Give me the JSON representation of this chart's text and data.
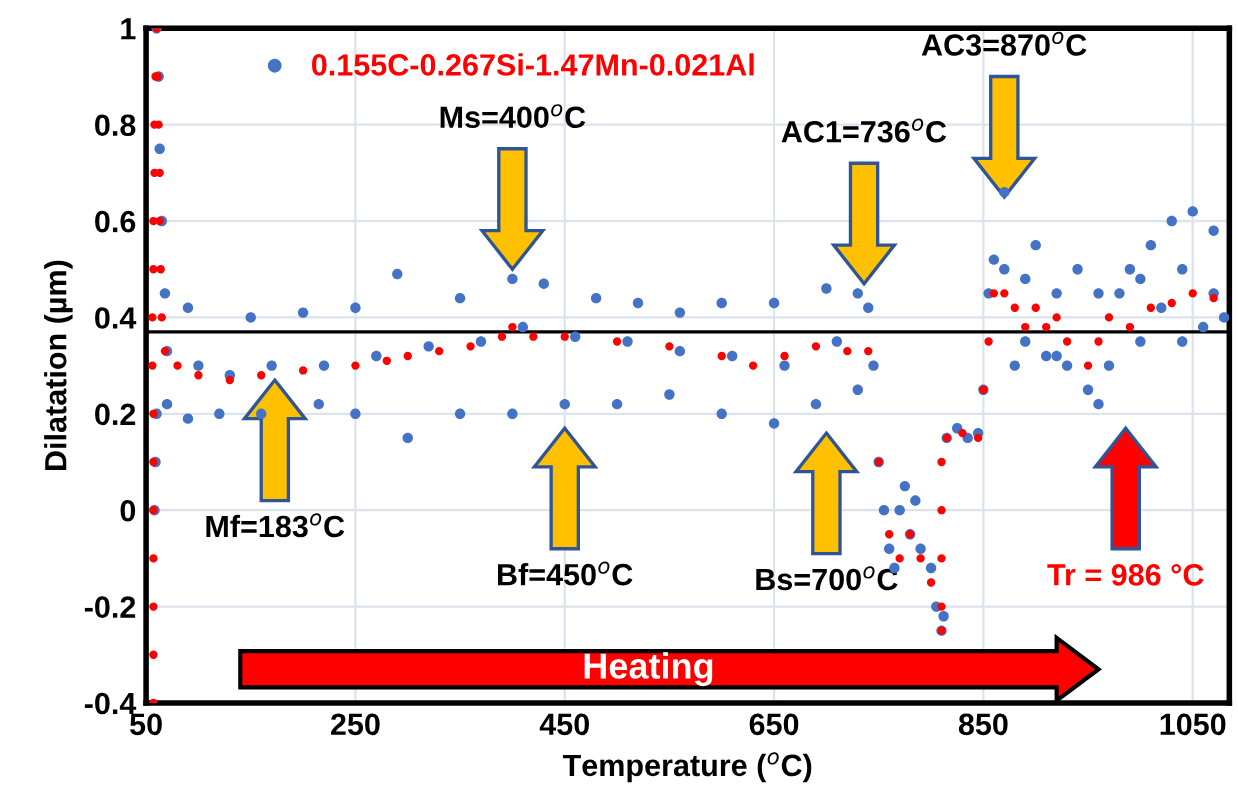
{
  "chart_data": {
    "type": "scatter",
    "xlabel": "Temperature ($^{o}$C)",
    "ylabel": "Dilatation (µm)",
    "xlim": [
      50,
      1085
    ],
    "xticks": [
      50,
      250,
      450,
      650,
      850,
      1050
    ],
    "ylim": [
      -0.4,
      1
    ],
    "yticks": [
      {
        "value": -0.4,
        "label": "-0.4"
      },
      {
        "value": -0.2,
        "label": "-0.2"
      },
      0,
      0.2,
      0.4,
      0.6,
      0.8,
      1
    ],
    "grid": true,
    "legend": "top left",
    "marker": "circle",
    "series": [
      {
        "name": "0.155C-0.267Si-1.47Mn-0.021Al",
        "color": "#4472c4",
        "x": [
          60,
          62,
          63,
          65,
          68,
          90,
          150,
          200,
          250,
          290,
          350,
          400,
          430,
          480,
          520,
          560,
          600,
          650,
          700,
          730,
          740,
          58,
          59,
          60,
          70,
          90,
          120,
          160,
          215,
          250,
          300,
          350,
          400,
          450,
          500,
          550,
          600,
          650,
          690,
          730,
          70,
          100,
          130,
          170,
          220,
          270,
          320,
          370,
          410,
          460,
          510,
          560,
          610,
          660,
          710,
          745,
          750,
          755,
          760,
          765,
          770,
          775,
          780,
          785,
          790,
          800,
          805,
          810,
          812,
          815,
          825,
          835,
          845,
          850,
          855,
          860,
          870,
          870,
          880,
          890,
          900,
          910,
          920,
          930,
          940,
          950,
          960,
          970,
          980,
          990,
          1000,
          1010,
          1020,
          1030,
          1040,
          1050,
          1060,
          1070,
          1080,
          890,
          920,
          960,
          1000,
          1040,
          1070
        ],
        "values": [
          1.0,
          0.9,
          0.75,
          0.6,
          0.45,
          0.42,
          0.4,
          0.41,
          0.42,
          0.49,
          0.44,
          0.48,
          0.47,
          0.44,
          0.43,
          0.41,
          0.43,
          0.43,
          0.46,
          0.45,
          0.42,
          0.0,
          0.1,
          0.2,
          0.22,
          0.19,
          0.2,
          0.2,
          0.22,
          0.2,
          0.15,
          0.2,
          0.2,
          0.22,
          0.22,
          0.24,
          0.2,
          0.18,
          0.22,
          0.25,
          0.33,
          0.3,
          0.28,
          0.3,
          0.3,
          0.32,
          0.34,
          0.35,
          0.38,
          0.36,
          0.35,
          0.33,
          0.32,
          0.3,
          0.35,
          0.3,
          0.1,
          0.0,
          -0.08,
          -0.12,
          0.0,
          0.05,
          -0.05,
          0.02,
          -0.08,
          -0.12,
          -0.2,
          -0.25,
          -0.22,
          0.15,
          0.17,
          0.15,
          0.16,
          0.25,
          0.45,
          0.52,
          0.5,
          0.66,
          0.3,
          0.48,
          0.55,
          0.32,
          0.45,
          0.3,
          0.5,
          0.25,
          0.22,
          0.3,
          0.45,
          0.5,
          0.35,
          0.55,
          0.42,
          0.6,
          0.35,
          0.62,
          0.38,
          0.58,
          0.4,
          0.35,
          0.32,
          0.45,
          0.48,
          0.5,
          0.45
        ]
      },
      {
        "color": "#ff0000",
        "x": [
          57,
          57,
          57,
          57,
          57,
          57,
          57,
          56,
          56,
          57,
          57,
          58,
          58,
          59,
          60,
          61,
          62,
          63,
          63,
          64,
          65,
          68,
          80,
          100,
          130,
          160,
          200,
          250,
          280,
          300,
          330,
          360,
          390,
          400,
          420,
          450,
          500,
          550,
          600,
          630,
          660,
          690,
          720,
          740,
          750,
          760,
          770,
          780,
          790,
          800,
          810,
          810,
          810,
          810,
          810,
          815,
          830,
          845,
          850,
          855,
          860,
          870,
          880,
          890,
          900,
          910,
          920,
          930,
          950,
          960,
          970,
          990,
          1010,
          1030,
          1050,
          1070
        ],
        "values": [
          -0.4,
          -0.3,
          -0.2,
          -0.1,
          0.0,
          0.1,
          0.2,
          0.3,
          0.4,
          0.5,
          0.6,
          0.7,
          0.8,
          0.9,
          1.0,
          0.9,
          0.8,
          0.7,
          0.6,
          0.5,
          0.4,
          0.33,
          0.3,
          0.28,
          0.27,
          0.28,
          0.29,
          0.3,
          0.31,
          0.32,
          0.33,
          0.34,
          0.36,
          0.38,
          0.36,
          0.36,
          0.35,
          0.34,
          0.32,
          0.3,
          0.32,
          0.34,
          0.33,
          0.33,
          0.1,
          -0.05,
          -0.1,
          -0.05,
          -0.1,
          -0.15,
          -0.25,
          -0.2,
          -0.1,
          0.0,
          0.1,
          0.15,
          0.16,
          0.15,
          0.25,
          0.35,
          0.45,
          0.45,
          0.42,
          0.38,
          0.42,
          0.38,
          0.4,
          0.35,
          0.3,
          0.35,
          0.4,
          0.38,
          0.42,
          0.43,
          0.45,
          0.44
        ]
      }
    ],
    "ref_lines": [
      {
        "axis": "y",
        "value": 0.37,
        "color": "#000000"
      }
    ],
    "annotations": [
      "Ms=400$^{o}$C",
      "AC1=736$^{o}$C",
      "AC3=870$^{o}$C",
      "Mf=183$^{o}$C",
      "Bf=450$^{o}$C",
      "Bs=700$^{o}$C",
      "Tr = 986 °C",
      "Heating"
    ]
  }
}
